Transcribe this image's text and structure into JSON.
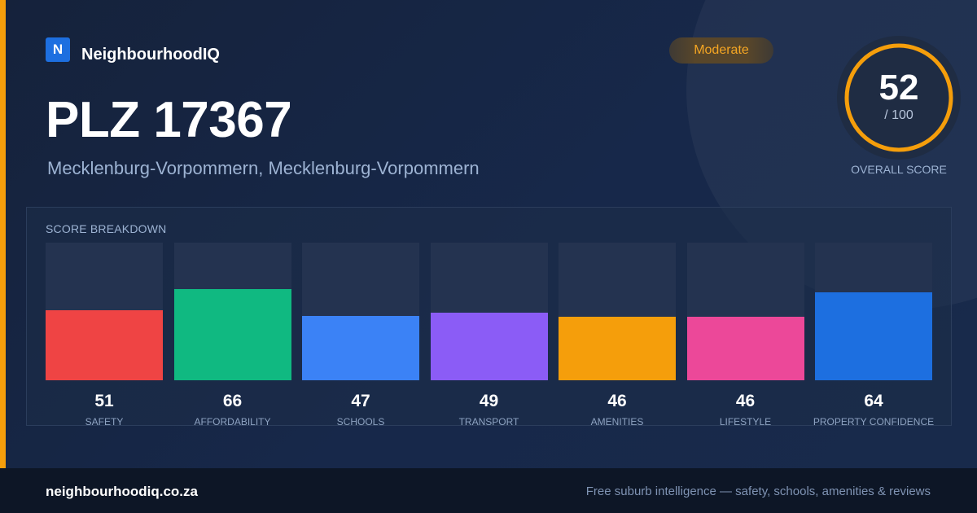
{
  "brand": {
    "logo_letter": "N",
    "name": "NeighbourhoodIQ",
    "logo_color": "#1d6fe0"
  },
  "header": {
    "title": "PLZ 17367",
    "subtitle": "Mecklenburg-Vorpommern, Mecklenburg-Vorpommern",
    "badge": "Moderate"
  },
  "overall": {
    "value": "52",
    "max": "/ 100",
    "fraction": 0.52,
    "label": "OVERALL SCORE",
    "ring_color": "#f59e0b"
  },
  "breakdown": {
    "title": "SCORE BREAKDOWN",
    "max": 100,
    "items": [
      {
        "value": "51",
        "label": "SAFETY",
        "color": "#ef4444"
      },
      {
        "value": "66",
        "label": "AFFORDABILITY",
        "color": "#10b981"
      },
      {
        "value": "47",
        "label": "SCHOOLS",
        "color": "#3b82f6"
      },
      {
        "value": "49",
        "label": "TRANSPORT",
        "color": "#8b5cf6"
      },
      {
        "value": "46",
        "label": "AMENITIES",
        "color": "#f59e0b"
      },
      {
        "value": "46",
        "label": "LIFESTYLE",
        "color": "#ec4899"
      },
      {
        "value": "64",
        "label": "PROPERTY CONFIDENCE",
        "color": "#1d6fe0"
      }
    ]
  },
  "footer": {
    "url": "neighbourhoodiq.co.za",
    "tagline": "Free suburb intelligence — safety, schools, amenities & reviews"
  }
}
